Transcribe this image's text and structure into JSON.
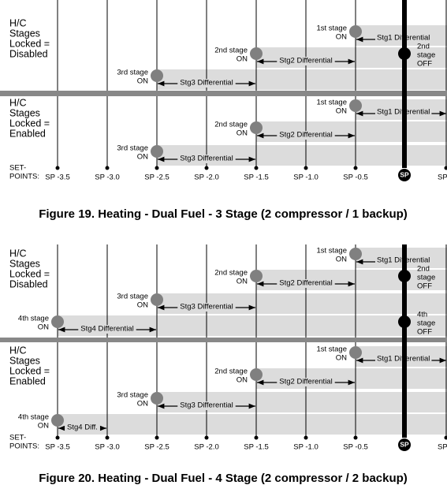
{
  "figures": [
    {
      "caption": "Figure 19. Heating - Dual Fuel - 3 Stage (2 compressor / 1 backup)",
      "setpoint_heading": [
        "SET-",
        "POINTS:"
      ],
      "setpoints": [
        "SP -3.5",
        "SP -3.0",
        "SP -2.5",
        "SP -2.0",
        "SP -1.5",
        "SP -1.0",
        "SP -0.5",
        "SP",
        "SP"
      ],
      "panels": [
        {
          "label": [
            "H/C",
            "Stages",
            "Locked =",
            "Disabled"
          ],
          "stages": [
            {
              "on": [
                "1st stage",
                "ON"
              ],
              "differential": "Stg1 Differential"
            },
            {
              "on": [
                "2nd stage",
                "ON"
              ],
              "differential": "Stg2 Differential",
              "off": [
                "2nd",
                "stage",
                "OFF"
              ]
            },
            {
              "on": [
                "3rd stage",
                "ON"
              ],
              "differential": "Stg3 Differential"
            }
          ]
        },
        {
          "label": [
            "H/C",
            "Stages",
            "Locked =",
            "Enabled"
          ],
          "stages": [
            {
              "on": [
                "1st stage",
                "ON"
              ],
              "differential": "Stg1 Differential"
            },
            {
              "on": [
                "2nd stage",
                "ON"
              ],
              "differential": "Stg2 Differential"
            },
            {
              "on": [
                "3rd stage",
                "ON"
              ],
              "differential": "Stg3 Differential"
            }
          ]
        }
      ]
    },
    {
      "caption": "Figure 20. Heating - Dual Fuel - 4 Stage (2 compressor / 2 backup)",
      "setpoint_heading": [
        "SET-",
        "POINTS:"
      ],
      "setpoints": [
        "SP -3.5",
        "SP -3.0",
        "SP -2.5",
        "SP -2.0",
        "SP -1.5",
        "SP -1.0",
        "SP -0.5",
        "SP",
        "SP"
      ],
      "panels": [
        {
          "label": [
            "H/C",
            "Stages",
            "Locked =",
            "Disabled"
          ],
          "stages": [
            {
              "on": [
                "1st stage",
                "ON"
              ],
              "differential": "Stg1 Differential"
            },
            {
              "on": [
                "2nd stage",
                "ON"
              ],
              "differential": "Stg2 Differential",
              "off": [
                "2nd",
                "stage",
                "OFF"
              ]
            },
            {
              "on": [
                "3rd stage",
                "ON"
              ],
              "differential": "Stg3 Differential"
            },
            {
              "on": [
                "4th stage",
                "ON"
              ],
              "differential": "Stg4 Differential",
              "off": [
                "4th",
                "stage",
                "OFF"
              ]
            }
          ]
        },
        {
          "label": [
            "H/C",
            "Stages",
            "Locked =",
            "Enabled"
          ],
          "stages": [
            {
              "on": [
                "1st stage",
                "ON"
              ],
              "differential": "Stg1 Differential"
            },
            {
              "on": [
                "2nd stage",
                "ON"
              ],
              "differential": "Stg2 Differential"
            },
            {
              "on": [
                "3rd stage",
                "ON"
              ],
              "differential": "Stg3 Differential"
            },
            {
              "on": [
                "4th stage",
                "ON"
              ],
              "differential": "Stg4 Diff."
            }
          ]
        }
      ]
    }
  ]
}
